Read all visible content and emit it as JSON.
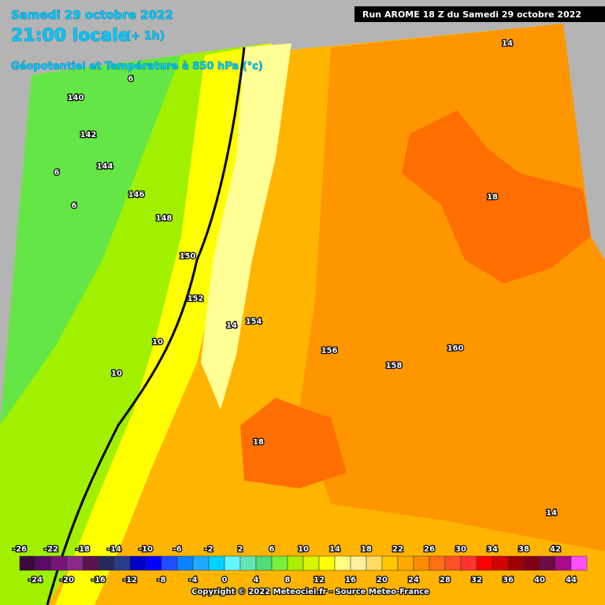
{
  "header": {
    "date": "Samedi 29 octobre 2022",
    "time": "21:00 locale",
    "offset": "(+ 1h)",
    "field": "Géopotentiel et Température à 850 hPa (°c)",
    "run": "Run AROME 18 Z du Samedi 29 octobre 2022"
  },
  "map_labels": [
    "14",
    "6",
    "140",
    "142",
    "144",
    "6",
    "146",
    "6",
    "148",
    "150",
    "152",
    "14",
    "154",
    "10",
    "10",
    "156",
    "158",
    "160",
    "18",
    "18",
    "14"
  ],
  "colorbar": {
    "ticks_top": [
      -26,
      -22,
      -18,
      -14,
      -10,
      -6,
      -2,
      2,
      6,
      10,
      14,
      18,
      22,
      26,
      30,
      34,
      38,
      42
    ],
    "ticks_bottom": [
      -24,
      -20,
      -16,
      -12,
      -8,
      -4,
      0,
      4,
      8,
      12,
      16,
      20,
      24,
      28,
      32,
      36,
      40,
      44
    ],
    "colors": [
      "#3c0a3c",
      "#5a0a64",
      "#781478",
      "#8c288c",
      "#5a1450",
      "#28285a",
      "#283c8c",
      "#0000c8",
      "#0000ff",
      "#1e50ff",
      "#0a82ff",
      "#1eaaff",
      "#00d2ff",
      "#64f5ff",
      "#64e6b4",
      "#50dc78",
      "#78f03c",
      "#aaf000",
      "#d7f500",
      "#ffff00",
      "#ffff82",
      "#fff0a0",
      "#ffdc64",
      "#ffc800",
      "#ffaa00",
      "#ff8c00",
      "#ff6e14",
      "#ff5028",
      "#ff3232",
      "#ff0000",
      "#d20000",
      "#a00000",
      "#820014",
      "#6e0a46",
      "#aa0a8c",
      "#ff50ff"
    ]
  },
  "copyright": "Copyright © 2022 Meteociel.fr - Source Meteo-France"
}
